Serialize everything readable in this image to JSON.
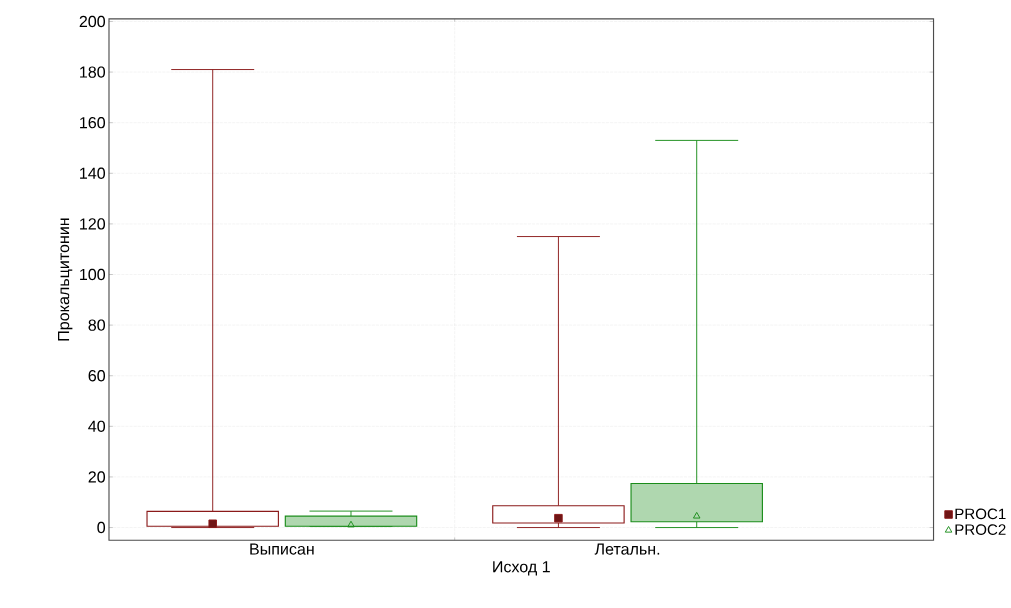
{
  "chart_data": {
    "type": "box",
    "xlabel": "Исход 1",
    "ylabel": "Прокальцитонин",
    "categories": [
      "Выписан",
      "Летальн."
    ],
    "series": [
      {
        "name": "PROC1",
        "color": "#8b1a1a",
        "marker": "square",
        "boxes": [
          {
            "low": 0,
            "q1": 0.5,
            "median": 1.5,
            "q3": 6.4,
            "high": 181
          },
          {
            "low": 0,
            "q1": 1.8,
            "median": 3.7,
            "q3": 8.6,
            "high": 115
          }
        ]
      },
      {
        "name": "PROC2",
        "color": "#1a8c1a",
        "marker": "triangle",
        "boxes": [
          {
            "low": 0.4,
            "q1": 0.5,
            "median": 1,
            "q3": 4.5,
            "high": 6.5
          },
          {
            "low": 0,
            "q1": 2.3,
            "median": 4.5,
            "q3": 17.4,
            "high": 153
          }
        ]
      }
    ],
    "ylim": [
      -5,
      201
    ],
    "yticks": [
      0,
      20,
      40,
      60,
      80,
      100,
      120,
      140,
      160,
      180,
      200
    ],
    "grid": true,
    "legend": "bottom right"
  }
}
